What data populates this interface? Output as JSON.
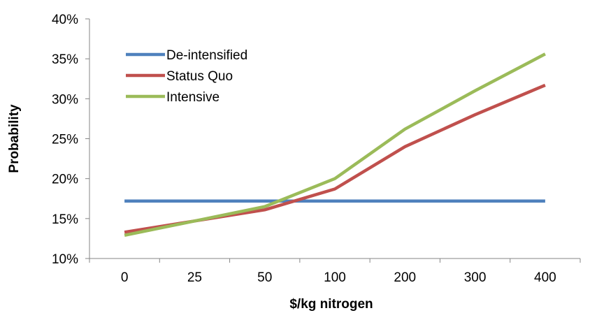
{
  "chart_data": {
    "type": "line",
    "xlabel": "$/kg nitrogen",
    "ylabel": "Probability",
    "categories": [
      "0",
      "25",
      "50",
      "100",
      "200",
      "300",
      "400"
    ],
    "y_ticks": [
      "10%",
      "15%",
      "20%",
      "25%",
      "30%",
      "35%",
      "40%"
    ],
    "ylim": [
      0.1,
      0.4
    ],
    "y_format": "percent",
    "grid": false,
    "legend_position": "top-left",
    "series": [
      {
        "name": "De-intensified",
        "color": "#4F81BD",
        "values": [
          0.172,
          0.172,
          0.172,
          0.172,
          0.172,
          0.172,
          0.172
        ]
      },
      {
        "name": "Status Quo",
        "color": "#C0504D",
        "values": [
          0.133,
          0.147,
          0.161,
          0.187,
          0.24,
          0.28,
          0.317
        ]
      },
      {
        "name": "Intensive",
        "color": "#9BBB59",
        "values": [
          0.129,
          0.147,
          0.165,
          0.2,
          0.262,
          0.31,
          0.356
        ]
      }
    ]
  }
}
